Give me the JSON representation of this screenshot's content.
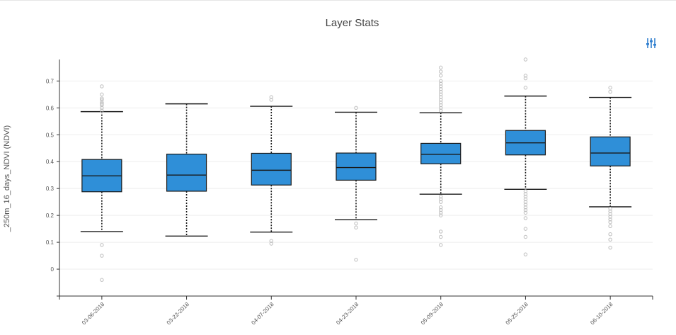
{
  "colors": {
    "box_fill": "#2f8fd8",
    "box_stroke": "#1a1a1a",
    "outlier": "#bdbdbd",
    "grid": "#eeeeee",
    "axis": "#333333",
    "icon": "#2f7fcf"
  },
  "toolbar": {
    "settings_icon": "sliders-icon"
  },
  "chart_data": {
    "type": "box",
    "title": "Layer Stats",
    "xlabel": "",
    "ylabel": "_250m_16_days_NDVI (NDVI)",
    "ylim": [
      -0.1,
      0.78
    ],
    "yticks": [
      0,
      0.1,
      0.2,
      0.3,
      0.4,
      0.5,
      0.6,
      0.7
    ],
    "grid": true,
    "categories": [
      "03-06-2018",
      "03-22-2018",
      "04-07-2018",
      "04-23-2018",
      "05-09-2018",
      "05-25-2018",
      "06-10-2018"
    ],
    "boxes": [
      {
        "date": "03-06-2018",
        "whisker_low": 0.14,
        "q1": 0.288,
        "median": 0.347,
        "q3": 0.408,
        "whisker_high": 0.586,
        "outliers": [
          0.59,
          0.6,
          0.61,
          0.615,
          0.62,
          0.63,
          0.635,
          0.65,
          0.68,
          0.09,
          0.05,
          -0.04
        ]
      },
      {
        "date": "03-22-2018",
        "whisker_low": 0.123,
        "q1": 0.29,
        "median": 0.35,
        "q3": 0.428,
        "whisker_high": 0.615,
        "outliers": []
      },
      {
        "date": "04-07-2018",
        "whisker_low": 0.138,
        "q1": 0.313,
        "median": 0.368,
        "q3": 0.431,
        "whisker_high": 0.606,
        "outliers": [
          0.63,
          0.64,
          0.105,
          0.095
        ]
      },
      {
        "date": "04-23-2018",
        "whisker_low": 0.184,
        "q1": 0.331,
        "median": 0.378,
        "q3": 0.432,
        "whisker_high": 0.584,
        "outliers": [
          0.6,
          0.17,
          0.155,
          0.035
        ]
      },
      {
        "date": "05-09-2018",
        "whisker_low": 0.279,
        "q1": 0.392,
        "median": 0.427,
        "q3": 0.468,
        "whisker_high": 0.582,
        "outliers": [
          0.59,
          0.6,
          0.61,
          0.62,
          0.63,
          0.64,
          0.65,
          0.66,
          0.67,
          0.68,
          0.69,
          0.7,
          0.72,
          0.735,
          0.75,
          0.27,
          0.26,
          0.25,
          0.23,
          0.22,
          0.21,
          0.2,
          0.14,
          0.12,
          0.09
        ]
      },
      {
        "date": "05-25-2018",
        "whisker_low": 0.297,
        "q1": 0.425,
        "median": 0.47,
        "q3": 0.516,
        "whisker_high": 0.644,
        "outliers": [
          0.675,
          0.71,
          0.72,
          0.78,
          0.29,
          0.28,
          0.27,
          0.26,
          0.25,
          0.24,
          0.23,
          0.22,
          0.21,
          0.19,
          0.15,
          0.12,
          0.055
        ]
      },
      {
        "date": "06-10-2018",
        "whisker_low": 0.232,
        "q1": 0.384,
        "median": 0.432,
        "q3": 0.492,
        "whisker_high": 0.639,
        "outliers": [
          0.66,
          0.675,
          0.225,
          0.215,
          0.205,
          0.195,
          0.185,
          0.175,
          0.16,
          0.13,
          0.11,
          0.08
        ]
      }
    ]
  }
}
